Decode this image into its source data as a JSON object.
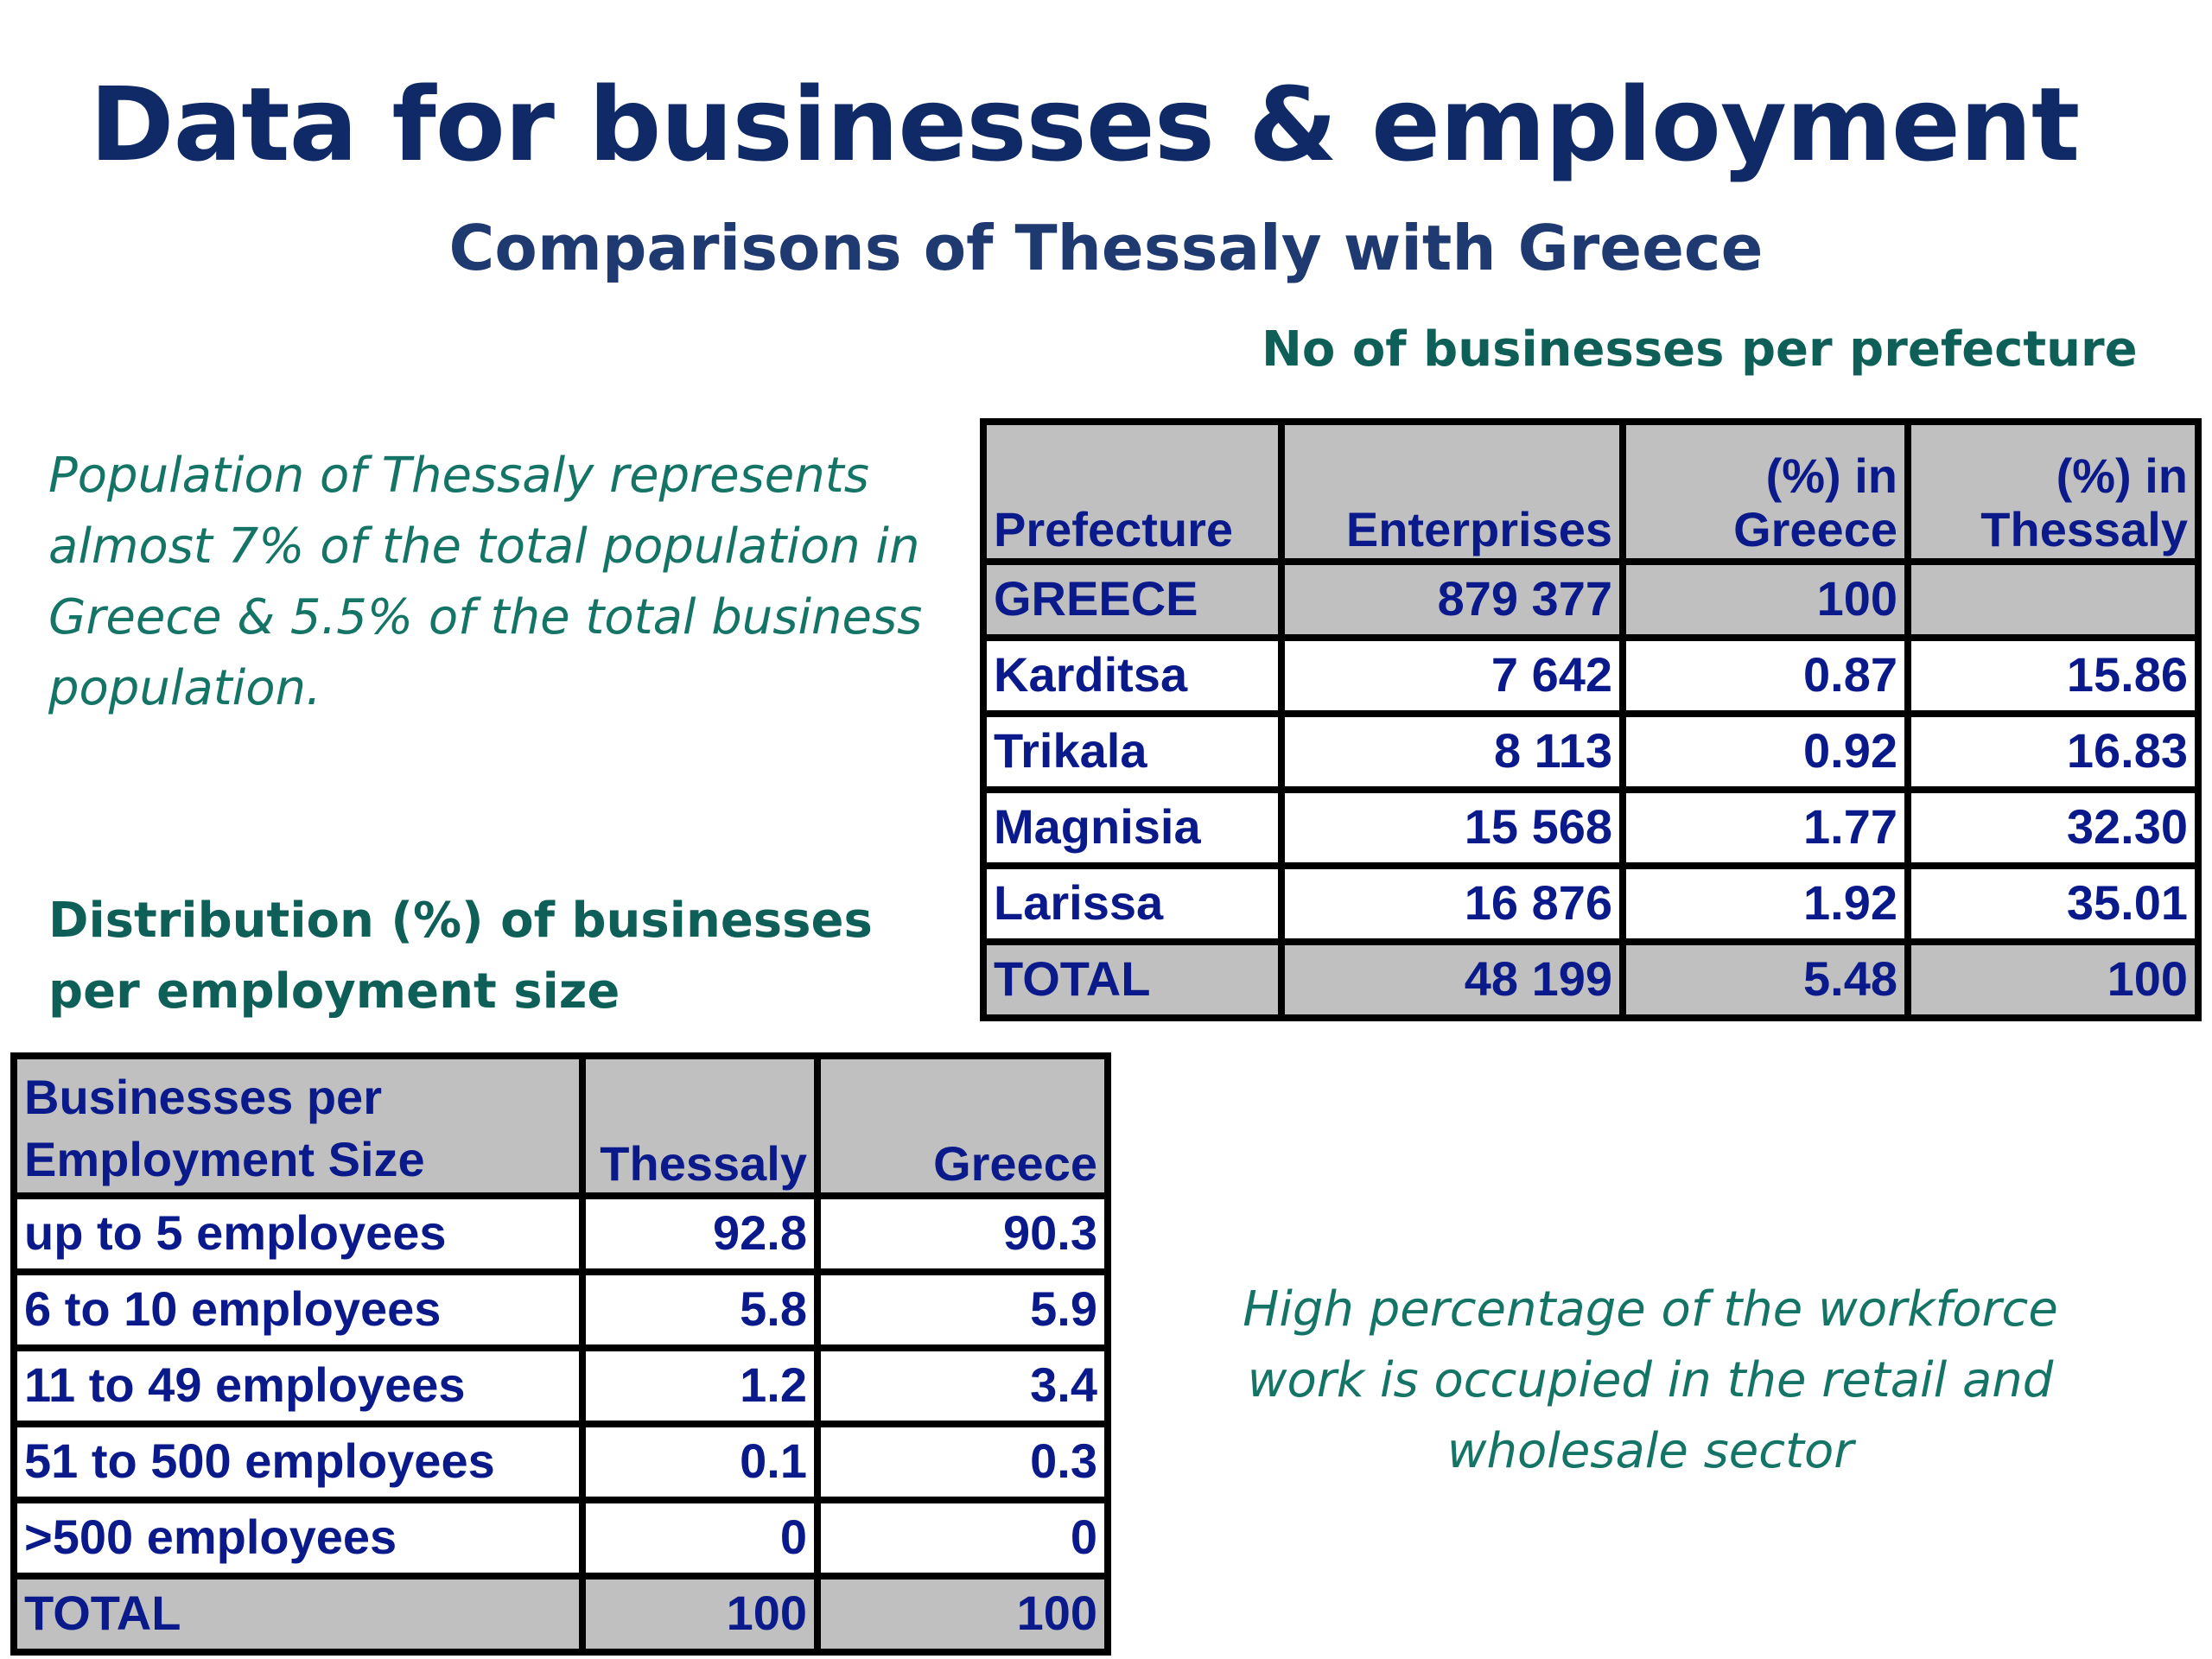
{
  "title": "Data for businesses & employment",
  "subtitle": "Comparisons of Thessaly with Greece",
  "prefecture_section": {
    "heading": "No of businesses per prefecture",
    "headers": [
      "Prefecture",
      "Enterprises",
      "(%) in Greece",
      "(%) in Thessaly"
    ],
    "rows": [
      {
        "name": "GREECE",
        "enterprises": "879 377",
        "pct_greece": "100",
        "pct_thessaly": "",
        "shade": "gray"
      },
      {
        "name": "Karditsa",
        "enterprises": "7 642",
        "pct_greece": "0.87",
        "pct_thessaly": "15.86",
        "shade": "white"
      },
      {
        "name": "Trikala",
        "enterprises": "8 113",
        "pct_greece": "0.92",
        "pct_thessaly": "16.83",
        "shade": "white"
      },
      {
        "name": "Magnisia",
        "enterprises": "15 568",
        "pct_greece": "1.77",
        "pct_thessaly": "32.30",
        "shade": "white"
      },
      {
        "name": "Larissa",
        "enterprises": "16 876",
        "pct_greece": "1.92",
        "pct_thessaly": "35.01",
        "shade": "white"
      },
      {
        "name": "TOTAL",
        "enterprises": "48 199",
        "pct_greece": "5.48",
        "pct_thessaly": "100",
        "shade": "gray"
      }
    ]
  },
  "population_note": "Population of Thessaly represents almost 7% of the total population in Greece & 5.5% of the total business population.",
  "employment_section": {
    "heading_line1": "Distribution (%) of businesses",
    "heading_line2": "per employment size",
    "headers": [
      "Businesses per Employment Size",
      "Thessaly",
      "Greece"
    ],
    "rows": [
      {
        "size": "up to 5 employees",
        "thessaly": "92.8",
        "greece": "90.3",
        "shade": "white"
      },
      {
        "size": "6 to 10 employees",
        "thessaly": "5.8",
        "greece": "5.9",
        "shade": "white"
      },
      {
        "size": "11 to 49 employees",
        "thessaly": "1.2",
        "greece": "3.4",
        "shade": "white"
      },
      {
        "size": "51 to 500 employees",
        "thessaly": "0.1",
        "greece": "0.3",
        "shade": "white"
      },
      {
        "size": ">500 employees",
        "thessaly": "0",
        "greece": "0",
        "shade": "white"
      },
      {
        "size": "TOTAL",
        "thessaly": "100",
        "greece": "100",
        "shade": "gray"
      }
    ]
  },
  "workforce_note": "High percentage of the workforce work is occupied in the retail and wholesale sector",
  "colors": {
    "title": "#0f2a66",
    "subtitle": "#1f3a70",
    "teal_heading": "#0e5f57",
    "italic_note": "#147466",
    "table_text": "#0a1a8a",
    "table_header_bg": "#c0c0c0",
    "table_border": "#000000"
  }
}
